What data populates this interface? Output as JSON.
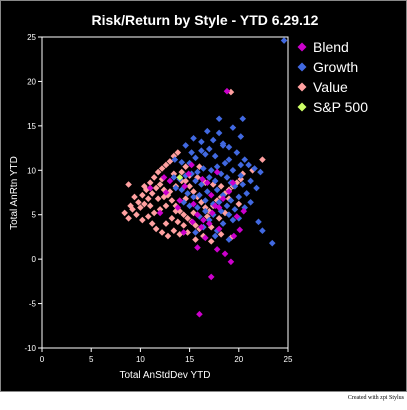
{
  "chart_data": {
    "type": "scatter",
    "title": "Risk/Return by Style - YTD 6.29.12",
    "xlabel": "Total AnStdDev YTD",
    "ylabel": "Total AnRtn YTD",
    "xlim": [
      0,
      25
    ],
    "ylim": [
      -10,
      25
    ],
    "xticks": [
      "0",
      "5",
      "10",
      "15",
      "20",
      "25"
    ],
    "yticks": [
      "-10",
      "-5",
      "0",
      "5",
      "10",
      "15",
      "20",
      "25"
    ],
    "grid": false,
    "legend_position": "top-right",
    "series": [
      {
        "name": "Blend",
        "color": "#cc00cc",
        "points": [
          [
            16.0,
            -6.2
          ],
          [
            17.2,
            -2.0
          ],
          [
            19.2,
            -0.3
          ],
          [
            18.6,
            0.6
          ],
          [
            15.8,
            1.3
          ],
          [
            17.8,
            1.1
          ],
          [
            16.6,
            2.4
          ],
          [
            20.1,
            3.3
          ],
          [
            14.4,
            3.0
          ],
          [
            15.3,
            4.2
          ],
          [
            16.2,
            3.6
          ],
          [
            17.0,
            4.0
          ],
          [
            18.0,
            3.4
          ],
          [
            19.5,
            2.6
          ],
          [
            18.4,
            6.8
          ],
          [
            13.8,
            5.8
          ],
          [
            12.6,
            7.5
          ],
          [
            11.0,
            8.0
          ],
          [
            14.9,
            9.6
          ],
          [
            12.4,
            9.2
          ],
          [
            16.3,
            9.0
          ],
          [
            17.3,
            5.2
          ],
          [
            19.0,
            7.6
          ],
          [
            18.8,
            18.9
          ],
          [
            17.8,
            9.8
          ],
          [
            15.4,
            6.2
          ],
          [
            16.8,
            8.6
          ],
          [
            17.2,
            7.2
          ],
          [
            19.8,
            4.8
          ],
          [
            14.0,
            6.6
          ],
          [
            12.0,
            5.2
          ],
          [
            15.8,
            5.0
          ],
          [
            18.0,
            5.8
          ],
          [
            20.5,
            5.4
          ],
          [
            16.4,
            4.4
          ],
          [
            14.5,
            8.2
          ],
          [
            13.0,
            8.8
          ],
          [
            19.4,
            8.6
          ],
          [
            15.2,
            10.6
          ],
          [
            17.6,
            6.0
          ]
        ]
      },
      {
        "name": "Growth",
        "color": "#4169e1",
        "points": [
          [
            24.6,
            24.6
          ],
          [
            20.4,
            15.8
          ],
          [
            20.2,
            13.8
          ],
          [
            15.4,
            13.6
          ],
          [
            14.6,
            12.8
          ],
          [
            17.4,
            13.4
          ],
          [
            18.4,
            13.0
          ],
          [
            17.0,
            12.4
          ],
          [
            16.2,
            12.2
          ],
          [
            16.6,
            11.8
          ],
          [
            15.6,
            11.4
          ],
          [
            15.0,
            10.8
          ],
          [
            14.2,
            10.9
          ],
          [
            13.5,
            11.2
          ],
          [
            19.0,
            12.6
          ],
          [
            19.8,
            12.0
          ],
          [
            18.4,
            12.8
          ],
          [
            20.6,
            11.2
          ],
          [
            21.0,
            10.6
          ],
          [
            21.6,
            10.2
          ],
          [
            22.2,
            9.8
          ],
          [
            20.2,
            9.4
          ],
          [
            19.4,
            10.0
          ],
          [
            18.6,
            10.8
          ],
          [
            17.8,
            10.4
          ],
          [
            17.2,
            10.0
          ],
          [
            16.4,
            10.2
          ],
          [
            15.8,
            9.8
          ],
          [
            15.2,
            9.6
          ],
          [
            14.6,
            9.4
          ],
          [
            14.0,
            9.0
          ],
          [
            13.4,
            9.2
          ],
          [
            15.6,
            8.8
          ],
          [
            16.2,
            8.4
          ],
          [
            17.0,
            9.2
          ],
          [
            17.6,
            8.8
          ],
          [
            18.2,
            9.6
          ],
          [
            18.8,
            9.2
          ],
          [
            19.2,
            8.6
          ],
          [
            19.6,
            8.2
          ],
          [
            20.4,
            8.4
          ],
          [
            21.2,
            8.8
          ],
          [
            21.8,
            8.0
          ],
          [
            20.8,
            7.4
          ],
          [
            20.0,
            7.0
          ],
          [
            19.2,
            6.6
          ],
          [
            18.4,
            7.2
          ],
          [
            17.8,
            7.8
          ],
          [
            16.8,
            7.6
          ],
          [
            16.0,
            7.2
          ],
          [
            15.4,
            7.0
          ],
          [
            14.8,
            7.4
          ],
          [
            14.2,
            7.8
          ],
          [
            13.6,
            8.0
          ],
          [
            16.6,
            6.6
          ],
          [
            17.4,
            6.2
          ],
          [
            18.0,
            6.4
          ],
          [
            18.8,
            6.0
          ],
          [
            19.6,
            5.6
          ],
          [
            20.6,
            5.8
          ],
          [
            21.2,
            6.4
          ],
          [
            22.0,
            4.2
          ],
          [
            22.4,
            3.2
          ],
          [
            23.4,
            1.8
          ],
          [
            20.0,
            4.6
          ],
          [
            19.0,
            5.0
          ],
          [
            18.2,
            5.4
          ],
          [
            17.4,
            5.0
          ],
          [
            16.6,
            5.4
          ],
          [
            15.8,
            5.8
          ],
          [
            15.0,
            6.0
          ],
          [
            14.4,
            6.4
          ],
          [
            16.0,
            4.8
          ],
          [
            17.0,
            4.4
          ],
          [
            18.4,
            4.0
          ],
          [
            19.4,
            4.4
          ],
          [
            16.4,
            3.6
          ],
          [
            17.8,
            3.2
          ],
          [
            15.6,
            3.0
          ],
          [
            17.6,
            2.6
          ],
          [
            19.0,
            2.2
          ],
          [
            18.0,
            15.8
          ],
          [
            16.8,
            14.4
          ],
          [
            19.4,
            14.8
          ],
          [
            18.0,
            14.2
          ],
          [
            16.2,
            13.2
          ],
          [
            17.6,
            11.6
          ],
          [
            19.0,
            11.2
          ],
          [
            20.2,
            10.6
          ],
          [
            15.2,
            12.0
          ]
        ]
      },
      {
        "name": "Value",
        "color": "#ffa0a0",
        "points": [
          [
            19.2,
            18.8
          ],
          [
            22.4,
            11.2
          ],
          [
            21.4,
            10.0
          ],
          [
            20.4,
            9.6
          ],
          [
            8.8,
            8.4
          ],
          [
            9.8,
            6.4
          ],
          [
            10.2,
            7.2
          ],
          [
            10.6,
            7.8
          ],
          [
            11.0,
            8.6
          ],
          [
            11.4,
            9.2
          ],
          [
            11.8,
            9.8
          ],
          [
            12.2,
            10.2
          ],
          [
            12.6,
            10.6
          ],
          [
            13.0,
            11.0
          ],
          [
            13.4,
            11.6
          ],
          [
            13.8,
            12.0
          ],
          [
            14.2,
            9.8
          ],
          [
            14.6,
            8.8
          ],
          [
            15.0,
            8.2
          ],
          [
            15.4,
            7.6
          ],
          [
            15.8,
            7.0
          ],
          [
            16.2,
            6.4
          ],
          [
            16.6,
            5.8
          ],
          [
            17.0,
            5.4
          ],
          [
            17.4,
            6.0
          ],
          [
            17.8,
            6.6
          ],
          [
            18.2,
            7.0
          ],
          [
            18.6,
            7.4
          ],
          [
            19.0,
            7.8
          ],
          [
            19.4,
            8.2
          ],
          [
            19.8,
            8.6
          ],
          [
            20.2,
            9.0
          ],
          [
            8.4,
            5.2
          ],
          [
            8.8,
            4.6
          ],
          [
            9.2,
            5.6
          ],
          [
            9.6,
            5.0
          ],
          [
            10.0,
            5.8
          ],
          [
            10.4,
            6.2
          ],
          [
            10.8,
            6.8
          ],
          [
            11.2,
            7.4
          ],
          [
            11.6,
            8.0
          ],
          [
            12.0,
            8.4
          ],
          [
            12.4,
            7.8
          ],
          [
            12.8,
            7.2
          ],
          [
            13.2,
            6.6
          ],
          [
            13.6,
            6.0
          ],
          [
            14.0,
            5.4
          ],
          [
            14.4,
            5.0
          ],
          [
            14.8,
            4.6
          ],
          [
            15.2,
            4.2
          ],
          [
            15.6,
            3.8
          ],
          [
            16.0,
            3.4
          ],
          [
            10.2,
            4.4
          ],
          [
            10.8,
            4.8
          ],
          [
            11.4,
            5.2
          ],
          [
            12.0,
            5.6
          ],
          [
            12.6,
            6.0
          ],
          [
            13.2,
            4.6
          ],
          [
            13.8,
            4.2
          ],
          [
            14.4,
            3.8
          ],
          [
            11.6,
            3.4
          ],
          [
            12.2,
            3.0
          ],
          [
            12.8,
            2.6
          ],
          [
            13.4,
            3.2
          ],
          [
            14.0,
            2.8
          ],
          [
            14.8,
            3.0
          ],
          [
            15.6,
            2.2
          ],
          [
            16.4,
            2.6
          ],
          [
            17.2,
            2.0
          ],
          [
            18.2,
            2.8
          ],
          [
            19.2,
            2.4
          ],
          [
            11.8,
            6.8
          ],
          [
            12.4,
            7.0
          ],
          [
            13.0,
            7.6
          ],
          [
            13.6,
            8.2
          ],
          [
            14.2,
            8.8
          ],
          [
            15.0,
            9.4
          ],
          [
            15.8,
            9.2
          ],
          [
            16.6,
            8.6
          ],
          [
            17.4,
            8.4
          ],
          [
            18.2,
            8.2
          ],
          [
            19.0,
            6.8
          ],
          [
            20.0,
            6.2
          ],
          [
            11.0,
            6.0
          ],
          [
            9.4,
            7.0
          ],
          [
            10.4,
            8.2
          ],
          [
            12.2,
            9.0
          ],
          [
            13.4,
            9.6
          ],
          [
            14.6,
            10.4
          ],
          [
            16.0,
            10.4
          ],
          [
            17.2,
            3.6
          ],
          [
            18.0,
            4.6
          ],
          [
            12.6,
            4.0
          ],
          [
            13.6,
            5.4
          ],
          [
            11.2,
            4.0
          ],
          [
            15.4,
            5.2
          ],
          [
            16.8,
            4.8
          ],
          [
            14.6,
            6.8
          ],
          [
            9.0,
            6.0
          ],
          [
            18.6,
            5.2
          ]
        ]
      },
      {
        "name": "S&P 500",
        "color": "#ccff66",
        "points": [
          [
            14.0,
            9.2
          ]
        ]
      }
    ]
  }
}
